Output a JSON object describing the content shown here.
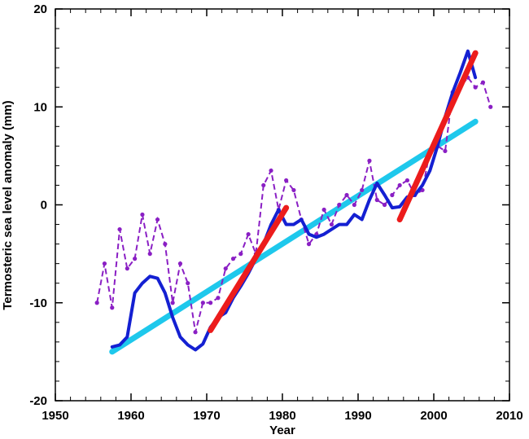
{
  "chart_data": {
    "type": "line",
    "title": "",
    "xlabel": "Year",
    "ylabel": "Termosteric sea level anomaly (mm)",
    "xlim": [
      1950,
      2010
    ],
    "ylim": [
      -20,
      20
    ],
    "xticks": [
      1950,
      1960,
      1970,
      1980,
      1990,
      2000,
      2010
    ],
    "yticks": [
      -20,
      -10,
      0,
      10,
      20
    ],
    "xtick_labels": [
      "1950",
      "1960",
      "1970",
      "1980",
      "1990",
      "2000",
      "2010"
    ],
    "ytick_labels": [
      "-20",
      "-10",
      "0",
      "10",
      "20"
    ],
    "grid": false,
    "series": [
      {
        "name": "annual-anomaly-dashed",
        "style": "dashed-with-markers",
        "color": "#8a1fc4",
        "x": [
          1955.5,
          1956.5,
          1957.5,
          1958.5,
          1959.5,
          1960.5,
          1961.5,
          1962.5,
          1963.5,
          1964.5,
          1965.5,
          1966.5,
          1967.5,
          1968.5,
          1969.5,
          1970.5,
          1971.5,
          1972.5,
          1973.5,
          1974.5,
          1975.5,
          1976.5,
          1977.5,
          1978.5,
          1979.5,
          1980.5,
          1981.5,
          1982.5,
          1983.5,
          1984.5,
          1985.5,
          1986.5,
          1987.5,
          1988.5,
          1989.5,
          1990.5,
          1991.5,
          1992.5,
          1993.5,
          1994.5,
          1995.5,
          1996.5,
          1997.5,
          1998.5,
          1999.5,
          2000.5,
          2001.5,
          2002.5,
          2003.5,
          2004.5,
          2005.5,
          2006.5,
          2007.5
        ],
        "y": [
          -10.0,
          -6.0,
          -10.5,
          -2.5,
          -6.5,
          -5.5,
          -1.0,
          -5.0,
          -1.5,
          -4.0,
          -10.0,
          -6.0,
          -8.0,
          -13.0,
          -10.0,
          -10.0,
          -9.5,
          -6.5,
          -5.5,
          -5.0,
          -3.0,
          -5.0,
          2.0,
          3.5,
          -0.5,
          2.5,
          1.5,
          -1.5,
          -4.0,
          -3.0,
          -0.5,
          -2.0,
          0.0,
          1.0,
          0.0,
          1.5,
          4.5,
          0.5,
          0.0,
          1.0,
          2.0,
          2.5,
          1.0,
          1.5,
          5.5,
          6.0,
          5.5,
          11.5,
          12.0,
          13.0,
          12.0,
          12.5,
          10.0
        ]
      },
      {
        "name": "smoothed-anomaly",
        "style": "solid",
        "color": "#1420d2",
        "x": [
          1957.5,
          1958.5,
          1959.5,
          1960.5,
          1961.5,
          1962.5,
          1963.5,
          1964.5,
          1965.5,
          1966.5,
          1967.5,
          1968.5,
          1969.5,
          1970.5,
          1971.5,
          1972.5,
          1973.5,
          1974.5,
          1975.5,
          1976.5,
          1977.5,
          1978.5,
          1979.5,
          1980.5,
          1981.5,
          1982.5,
          1983.5,
          1984.5,
          1985.5,
          1986.5,
          1987.5,
          1988.5,
          1989.5,
          1990.5,
          1991.5,
          1992.5,
          1993.5,
          1994.5,
          1995.5,
          1996.5,
          1997.5,
          1998.5,
          1999.5,
          2000.5,
          2001.5,
          2002.5,
          2003.5,
          2004.5,
          2005.5
        ],
        "y": [
          -14.5,
          -14.3,
          -13.5,
          -9.0,
          -8.0,
          -7.3,
          -7.5,
          -9.0,
          -11.5,
          -13.5,
          -14.3,
          -14.8,
          -14.2,
          -12.5,
          -11.5,
          -11.0,
          -9.5,
          -8.3,
          -7.0,
          -5.5,
          -4.0,
          -2.0,
          -0.5,
          -2.0,
          -2.0,
          -1.5,
          -3.0,
          -3.3,
          -3.0,
          -2.5,
          -2.0,
          -2.0,
          -1.0,
          -1.5,
          0.5,
          2.2,
          1.0,
          -0.3,
          -0.2,
          0.8,
          1.0,
          2.0,
          3.5,
          6.0,
          9.0,
          11.5,
          13.5,
          15.7,
          13.0
        ]
      }
    ],
    "trend_lines": [
      {
        "name": "long-term-trend",
        "color": "#1ec8ec",
        "x": [
          1957.5,
          2005.5
        ],
        "y": [
          -15.0,
          8.5
        ]
      },
      {
        "name": "trend-1970-1980",
        "color": "#ec1c1c",
        "x": [
          1970.5,
          1980.5
        ],
        "y": [
          -12.8,
          -0.3
        ]
      },
      {
        "name": "trend-1995-2005",
        "color": "#ec1c1c",
        "x": [
          1995.5,
          2005.5
        ],
        "y": [
          -1.5,
          15.5
        ]
      }
    ]
  }
}
